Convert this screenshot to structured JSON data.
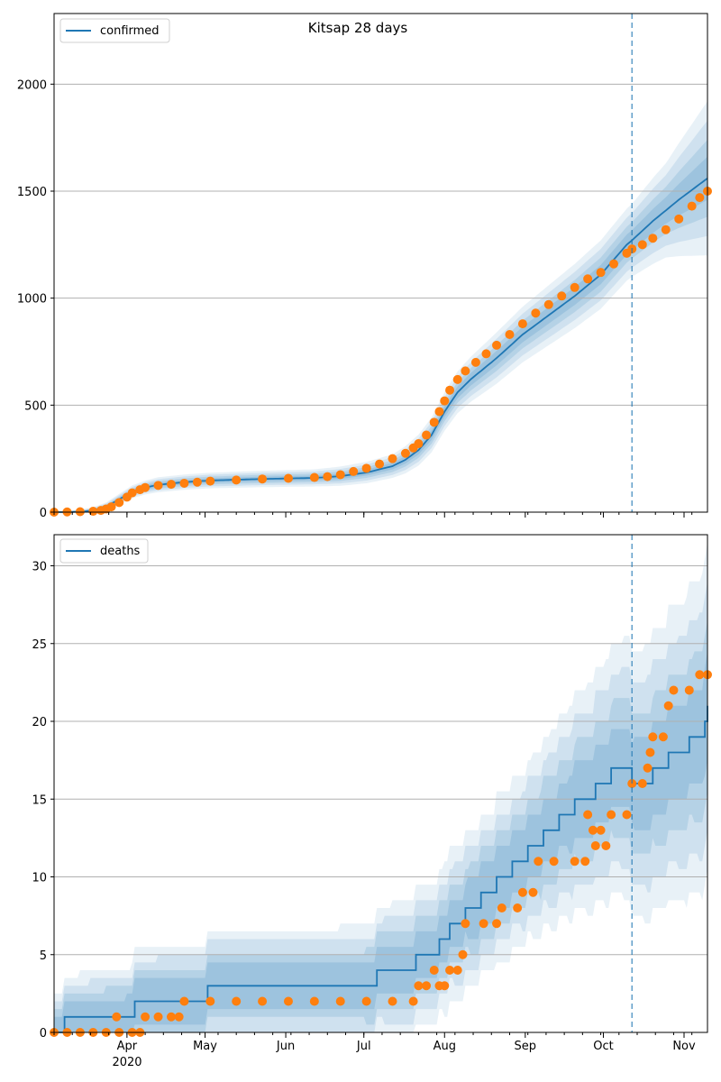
{
  "colors": {
    "line": "#1f77b4",
    "points": "#ff7f0e",
    "band": "#1f77b4",
    "grid": "#b0b0b0",
    "vline": "#1f77b4"
  },
  "chart_data": [
    {
      "type": "line",
      "title": "Kitsap 28 days",
      "legend": "confirmed",
      "legend_position": "top-left",
      "grid": "y",
      "x_range": [
        0,
        251
      ],
      "ylim": [
        0,
        2330
      ],
      "yticks": [
        0,
        500,
        1000,
        1500,
        2000
      ],
      "xticks": [
        {
          "day": 28,
          "label": "Apr"
        },
        {
          "day": 58,
          "label": "May"
        },
        {
          "day": 89,
          "label": "Jun"
        },
        {
          "day": 119,
          "label": "Jul"
        },
        {
          "day": 150,
          "label": "Aug"
        },
        {
          "day": 181,
          "label": "Sep"
        },
        {
          "day": 211,
          "label": "Oct"
        },
        {
          "day": 242,
          "label": "Nov"
        }
      ],
      "year_label": "2020",
      "cutoff_day": 222,
      "model": [
        [
          0,
          0
        ],
        [
          5,
          0
        ],
        [
          10,
          2
        ],
        [
          15,
          8
        ],
        [
          20,
          25
        ],
        [
          25,
          60
        ],
        [
          30,
          95
        ],
        [
          35,
          115
        ],
        [
          40,
          128
        ],
        [
          50,
          140
        ],
        [
          60,
          148
        ],
        [
          80,
          155
        ],
        [
          100,
          160
        ],
        [
          110,
          168
        ],
        [
          120,
          185
        ],
        [
          130,
          215
        ],
        [
          135,
          245
        ],
        [
          140,
          290
        ],
        [
          145,
          360
        ],
        [
          150,
          470
        ],
        [
          155,
          560
        ],
        [
          160,
          620
        ],
        [
          170,
          720
        ],
        [
          180,
          830
        ],
        [
          190,
          920
        ],
        [
          200,
          1010
        ],
        [
          210,
          1110
        ],
        [
          220,
          1250
        ],
        [
          222,
          1270
        ],
        [
          230,
          1360
        ],
        [
          240,
          1460
        ],
        [
          251,
          1560
        ]
      ],
      "band_width": [
        [
          0,
          5
        ],
        [
          10,
          10
        ],
        [
          20,
          20
        ],
        [
          30,
          30
        ],
        [
          40,
          35
        ],
        [
          100,
          40
        ],
        [
          130,
          55
        ],
        [
          150,
          90
        ],
        [
          170,
          120
        ],
        [
          190,
          140
        ],
        [
          210,
          160
        ],
        [
          222,
          170
        ],
        [
          235,
          220
        ],
        [
          251,
          360
        ]
      ],
      "points": [
        [
          0,
          0
        ],
        [
          5,
          1
        ],
        [
          10,
          2
        ],
        [
          15,
          4
        ],
        [
          18,
          8
        ],
        [
          20,
          15
        ],
        [
          22,
          25
        ],
        [
          25,
          45
        ],
        [
          28,
          70
        ],
        [
          30,
          90
        ],
        [
          33,
          105
        ],
        [
          35,
          115
        ],
        [
          40,
          125
        ],
        [
          45,
          130
        ],
        [
          50,
          135
        ],
        [
          55,
          140
        ],
        [
          60,
          145
        ],
        [
          70,
          150
        ],
        [
          80,
          155
        ],
        [
          90,
          158
        ],
        [
          100,
          162
        ],
        [
          105,
          166
        ],
        [
          110,
          175
        ],
        [
          115,
          190
        ],
        [
          120,
          205
        ],
        [
          125,
          225
        ],
        [
          130,
          250
        ],
        [
          135,
          275
        ],
        [
          138,
          300
        ],
        [
          140,
          320
        ],
        [
          143,
          360
        ],
        [
          146,
          420
        ],
        [
          148,
          470
        ],
        [
          150,
          520
        ],
        [
          152,
          570
        ],
        [
          155,
          620
        ],
        [
          158,
          660
        ],
        [
          162,
          700
        ],
        [
          166,
          740
        ],
        [
          170,
          780
        ],
        [
          175,
          830
        ],
        [
          180,
          880
        ],
        [
          185,
          930
        ],
        [
          190,
          970
        ],
        [
          195,
          1010
        ],
        [
          200,
          1050
        ],
        [
          205,
          1090
        ],
        [
          210,
          1120
        ],
        [
          215,
          1160
        ],
        [
          220,
          1210
        ],
        [
          222,
          1230
        ],
        [
          226,
          1250
        ],
        [
          230,
          1280
        ],
        [
          235,
          1320
        ],
        [
          240,
          1370
        ],
        [
          245,
          1430
        ],
        [
          248,
          1470
        ],
        [
          251,
          1500
        ]
      ]
    },
    {
      "type": "line",
      "title": "",
      "legend": "deaths",
      "legend_position": "top-left",
      "grid": "y",
      "x_range": [
        0,
        251
      ],
      "ylim": [
        0,
        32
      ],
      "yticks": [
        0,
        5,
        10,
        15,
        20,
        25,
        30
      ],
      "xticks": [
        {
          "day": 28,
          "label": "Apr"
        },
        {
          "day": 58,
          "label": "May"
        },
        {
          "day": 89,
          "label": "Jun"
        },
        {
          "day": 119,
          "label": "Jul"
        },
        {
          "day": 150,
          "label": "Aug"
        },
        {
          "day": 181,
          "label": "Sep"
        },
        {
          "day": 211,
          "label": "Oct"
        },
        {
          "day": 242,
          "label": "Nov"
        }
      ],
      "year_label": "2020",
      "cutoff_day": 222,
      "model_steps": [
        [
          0,
          0
        ],
        [
          4,
          1
        ],
        [
          31,
          2
        ],
        [
          59,
          3
        ],
        [
          124,
          4
        ],
        [
          139,
          5
        ],
        [
          148,
          6
        ],
        [
          152,
          7
        ],
        [
          158,
          8
        ],
        [
          164,
          9
        ],
        [
          170,
          10
        ],
        [
          176,
          11
        ],
        [
          182,
          12
        ],
        [
          188,
          13
        ],
        [
          194,
          14
        ],
        [
          200,
          15
        ],
        [
          208,
          16
        ],
        [
          214,
          17
        ],
        [
          222,
          16
        ],
        [
          230,
          17
        ],
        [
          236,
          18
        ],
        [
          244,
          19
        ],
        [
          250,
          20
        ],
        [
          251,
          21
        ]
      ],
      "band_offsets": [
        [
          0,
          2
        ],
        [
          40,
          3
        ],
        [
          100,
          3
        ],
        [
          140,
          4
        ],
        [
          180,
          5
        ],
        [
          222,
          8
        ],
        [
          240,
          9
        ],
        [
          251,
          10
        ]
      ],
      "points": [
        [
          0,
          0
        ],
        [
          5,
          0
        ],
        [
          10,
          0
        ],
        [
          15,
          0
        ],
        [
          20,
          0
        ],
        [
          25,
          0
        ],
        [
          30,
          0
        ],
        [
          33,
          0
        ],
        [
          24,
          1
        ],
        [
          35,
          1
        ],
        [
          40,
          1
        ],
        [
          45,
          1
        ],
        [
          48,
          1
        ],
        [
          50,
          2
        ],
        [
          60,
          2
        ],
        [
          70,
          2
        ],
        [
          80,
          2
        ],
        [
          90,
          2
        ],
        [
          100,
          2
        ],
        [
          110,
          2
        ],
        [
          120,
          2
        ],
        [
          130,
          2
        ],
        [
          138,
          2
        ],
        [
          140,
          3
        ],
        [
          143,
          3
        ],
        [
          146,
          4
        ],
        [
          148,
          3
        ],
        [
          150,
          3
        ],
        [
          152,
          4
        ],
        [
          155,
          4
        ],
        [
          157,
          5
        ],
        [
          158,
          7
        ],
        [
          165,
          7
        ],
        [
          170,
          7
        ],
        [
          172,
          8
        ],
        [
          178,
          8
        ],
        [
          180,
          9
        ],
        [
          184,
          9
        ],
        [
          186,
          11
        ],
        [
          192,
          11
        ],
        [
          200,
          11
        ],
        [
          204,
          11
        ],
        [
          205,
          14
        ],
        [
          207,
          13
        ],
        [
          208,
          12
        ],
        [
          210,
          13
        ],
        [
          212,
          12
        ],
        [
          214,
          14
        ],
        [
          220,
          14
        ],
        [
          222,
          16
        ],
        [
          226,
          16
        ],
        [
          228,
          17
        ],
        [
          229,
          18
        ],
        [
          230,
          19
        ],
        [
          234,
          19
        ],
        [
          236,
          21
        ],
        [
          238,
          22
        ],
        [
          244,
          22
        ],
        [
          248,
          23
        ],
        [
          251,
          23
        ]
      ]
    }
  ]
}
